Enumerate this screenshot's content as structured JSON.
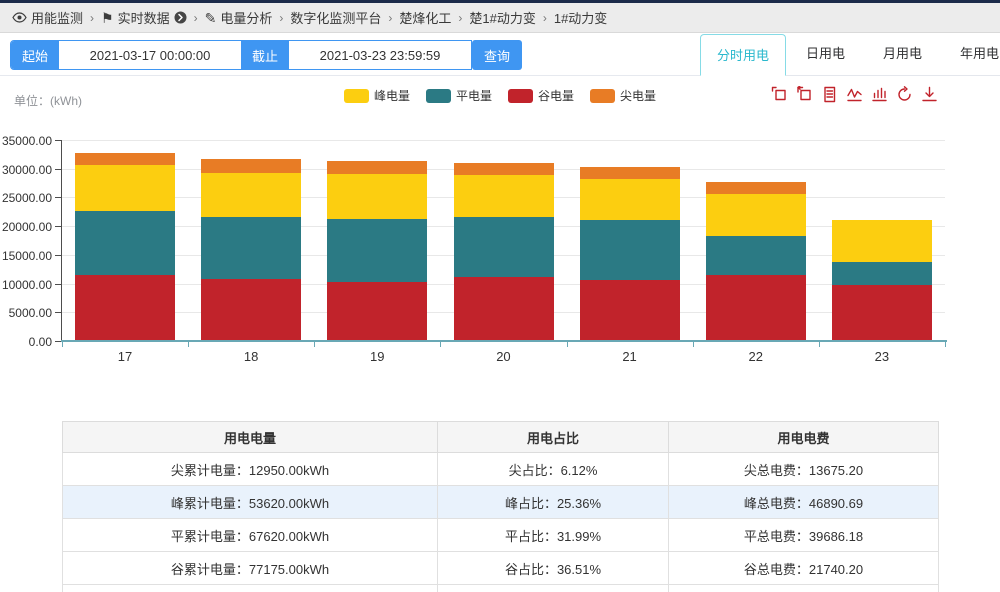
{
  "topnav": {
    "separator": "›",
    "items": [
      {
        "icon": "eye-icon",
        "label": "用能监测"
      },
      {
        "icon": "flag-icon",
        "label": "实时数据",
        "suffix_icon": "circle-arrow-icon"
      },
      {
        "icon": "pen-icon",
        "label": "电量分析"
      },
      {
        "label": "数字化监测平台"
      },
      {
        "label": "楚烽化工"
      },
      {
        "label": "楚1#动力变"
      },
      {
        "label": "1#动力变"
      }
    ]
  },
  "filters": {
    "start_label": "起始",
    "start_value": "2021-03-17 00:00:00",
    "end_label": "截止",
    "end_value": "2021-03-23 23:59:59",
    "query_label": "查询",
    "accent_color": "#3f96f2"
  },
  "tabs": [
    {
      "label": "分时用电",
      "active": true
    },
    {
      "label": "日用电",
      "active": false
    },
    {
      "label": "月用电",
      "active": false
    },
    {
      "label": "年用电",
      "active": false
    }
  ],
  "chart": {
    "unit_label": "单位：(kWh)",
    "active_tab_color": "#2ab8cd",
    "toolbar_color": "#c1232b",
    "toolbar_icons": [
      "data-zoom-icon",
      "zoom-back-icon",
      "data-view-icon",
      "line-chart-icon",
      "bar-chart-icon",
      "restore-icon",
      "save-image-icon"
    ]
  },
  "chart_data": {
    "type": "bar",
    "stacked": true,
    "title": "",
    "xlabel": "",
    "ylabel": "",
    "unit": "kWh",
    "categories": [
      "17",
      "18",
      "19",
      "20",
      "21",
      "22",
      "23"
    ],
    "series": [
      {
        "name": "谷电量",
        "color": "#c1232b",
        "values": [
          11250,
          10700,
          10100,
          10950,
          10400,
          11300,
          9600
        ]
      },
      {
        "name": "平电量",
        "color": "#2b7a84",
        "values": [
          11300,
          10750,
          10950,
          10550,
          10500,
          6850,
          4050
        ]
      },
      {
        "name": "峰电量",
        "color": "#fcce10",
        "values": [
          7900,
          7700,
          7850,
          7200,
          7100,
          7250,
          7250
        ]
      },
      {
        "name": "尖电量",
        "color": "#e87c25",
        "values": [
          2150,
          2350,
          2250,
          2200,
          2150,
          2150,
          0
        ]
      }
    ],
    "legend_order": [
      "峰电量",
      "平电量",
      "谷电量",
      "尖电量"
    ],
    "legend_position": "top-center",
    "grid": true,
    "ylim": [
      0,
      35000
    ],
    "ytick_step": 5000,
    "axis_line_color": "#69a8b5"
  },
  "table": {
    "headers": [
      "用电电量",
      "用电占比",
      "用电电费"
    ],
    "rows": [
      {
        "quantity": "尖累计电量：12950.00kWh",
        "ratio": "尖占比：6.12%",
        "fee": "尖总电费：13675.20",
        "highlight": false
      },
      {
        "quantity": "峰累计电量：53620.00kWh",
        "ratio": "峰占比：25.36%",
        "fee": "峰总电费：46890.69",
        "highlight": true
      },
      {
        "quantity": "平累计电量：67620.00kWh",
        "ratio": "平占比：31.99%",
        "fee": "平总电费：39686.18",
        "highlight": false
      },
      {
        "quantity": "谷累计电量：77175.00kWh",
        "ratio": "谷占比：36.51%",
        "fee": "谷总电费：21740.20",
        "highlight": false
      }
    ]
  }
}
